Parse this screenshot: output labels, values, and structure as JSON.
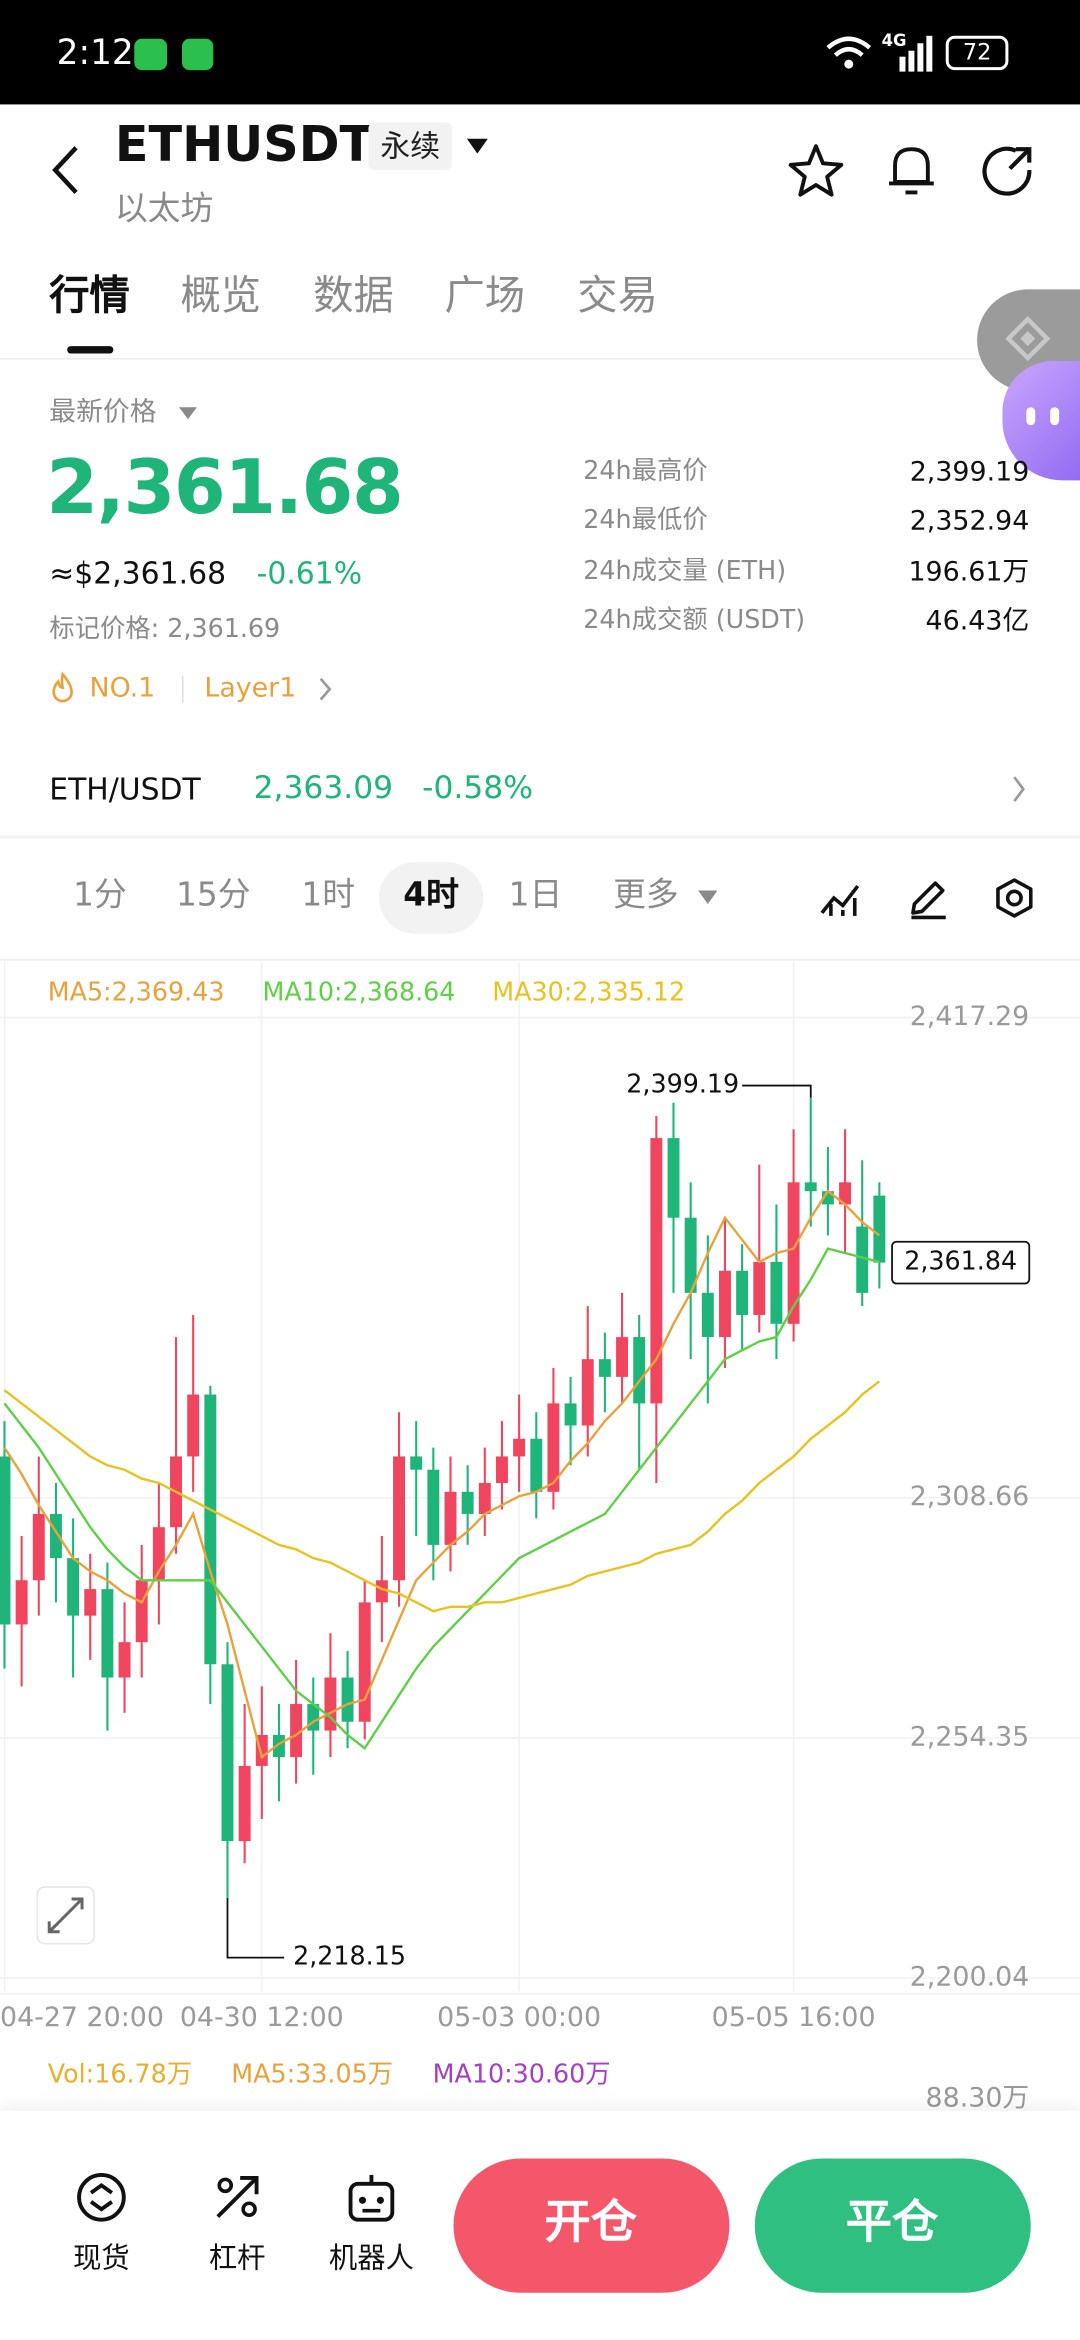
{
  "status_bar": {
    "time": "2:12",
    "network": "4G",
    "battery": "72"
  },
  "header": {
    "symbol": "ETHUSDT",
    "contract_type": "永续",
    "name": "以太坊"
  },
  "tabs": [
    "行情",
    "概览",
    "数据",
    "广场",
    "交易"
  ],
  "price_panel": {
    "label": "最新价格",
    "last_price": "2,361.68",
    "usd_price": "≈$2,361.68",
    "change": "-0.61%",
    "mark_price": "标记价格: 2,361.69",
    "rank": "NO.1",
    "sector": "Layer1"
  },
  "stats": [
    {
      "label": "24h最高价",
      "value": "2,399.19"
    },
    {
      "label": "24h最低价",
      "value": "2,352.94"
    },
    {
      "label": "24h成交量 (ETH)",
      "value": "196.61万"
    },
    {
      "label": "24h成交额 (USDT)",
      "value": "46.43亿"
    }
  ],
  "spot_pair": {
    "symbol": "ETH/USDT",
    "price": "2,363.09",
    "change": "-0.58%"
  },
  "timeframes": [
    "1分",
    "15分",
    "1时",
    "4时",
    "1日"
  ],
  "selected_timeframe": 3,
  "more_label": "更多",
  "chart_data": {
    "type": "candlestick",
    "categories": [
      "04-27 20:00",
      null,
      null,
      null,
      null,
      null,
      null,
      null,
      null,
      null,
      null,
      null,
      null,
      null,
      null,
      "04-30 12:00",
      null,
      null,
      null,
      null,
      null,
      null,
      null,
      null,
      null,
      null,
      null,
      null,
      null,
      null,
      "05-03 00:00",
      null,
      null,
      null,
      null,
      null,
      null,
      null,
      null,
      null,
      null,
      null,
      null,
      null,
      null,
      null,
      "05-05 16:00",
      null,
      null,
      null,
      null,
      null
    ],
    "open": [
      2318,
      2280,
      2290,
      2305,
      2295,
      2282,
      2288,
      2268,
      2276,
      2290,
      2302,
      2318,
      2332,
      2271,
      2231,
      2248,
      2255,
      2250,
      2262,
      2256,
      2268,
      2258,
      2285,
      2290,
      2318,
      2315,
      2298,
      2310,
      2305,
      2312,
      2318,
      2322,
      2310,
      2330,
      2325,
      2340,
      2336,
      2345,
      2330,
      2390,
      2372,
      2355,
      2345,
      2360,
      2350,
      2362,
      2348,
      2380,
      2378,
      2375,
      2370,
      2377
    ],
    "high": [
      2326,
      2300,
      2318,
      2312,
      2304,
      2296,
      2294,
      2285,
      2298,
      2312,
      2345,
      2350,
      2334,
      2276,
      2262,
      2266,
      2262,
      2272,
      2268,
      2278,
      2274,
      2290,
      2300,
      2328,
      2326,
      2320,
      2318,
      2316,
      2320,
      2326,
      2332,
      2328,
      2338,
      2336,
      2352,
      2346,
      2355,
      2350,
      2395,
      2398,
      2380,
      2368,
      2372,
      2366,
      2384,
      2375,
      2392,
      2399.19,
      2388,
      2392,
      2385,
      2380
    ],
    "low": [
      2270,
      2266,
      2282,
      2285,
      2268,
      2272,
      2256,
      2260,
      2268,
      2280,
      2296,
      2310,
      2262,
      2218.15,
      2226,
      2236,
      2240,
      2244,
      2246,
      2250,
      2252,
      2254,
      2276,
      2284,
      2300,
      2290,
      2292,
      2298,
      2300,
      2306,
      2310,
      2304,
      2306,
      2316,
      2318,
      2328,
      2330,
      2315,
      2312,
      2355,
      2340,
      2330,
      2338,
      2342,
      2346,
      2340,
      2344,
      2370,
      2368,
      2364,
      2352,
      2356
    ],
    "close": [
      2280,
      2290,
      2305,
      2295,
      2282,
      2288,
      2268,
      2276,
      2290,
      2302,
      2318,
      2332,
      2271,
      2231,
      2248,
      2255,
      2250,
      2262,
      2256,
      2268,
      2258,
      2285,
      2290,
      2318,
      2315,
      2298,
      2310,
      2305,
      2312,
      2318,
      2322,
      2310,
      2330,
      2325,
      2340,
      2336,
      2345,
      2330,
      2390,
      2372,
      2355,
      2345,
      2360,
      2350,
      2362,
      2348,
      2380,
      2378,
      2375,
      2380,
      2355,
      2361.84
    ],
    "up_color": "#f0455f",
    "down_color": "#1fb57a",
    "series": [
      {
        "name": "MA5:2,369.43",
        "color": "#e9a23b",
        "values": [
          2320,
          2314,
          2307,
          2301,
          2295,
          2292,
          2290,
          2287,
          2285,
          2292,
          2298,
          2305,
          2292,
          2280,
          2265,
          2250,
          2253,
          2255,
          2258,
          2260,
          2262,
          2263,
          2272,
          2281,
          2290,
          2294,
          2298,
          2301,
          2305,
          2307,
          2309,
          2310,
          2312,
          2317,
          2321,
          2326,
          2330,
          2335,
          2340,
          2348,
          2355,
          2364,
          2372,
          2367,
          2362,
          2364,
          2365,
          2372,
          2378,
          2375,
          2371,
          2368
        ]
      },
      {
        "name": "MA10:2,368.64",
        "color": "#5fd046",
        "values": [
          2330,
          2325,
          2320,
          2314,
          2308,
          2302,
          2297,
          2293,
          2290,
          2290,
          2290,
          2290,
          2290,
          2285,
          2280,
          2275,
          2270,
          2265,
          2262,
          2259,
          2255,
          2252,
          2258,
          2264,
          2270,
          2275,
          2279,
          2283,
          2287,
          2291,
          2295,
          2297,
          2299,
          2301,
          2303,
          2305,
          2310,
          2315,
          2320,
          2325,
          2330,
          2335,
          2340,
          2342,
          2344,
          2345,
          2352,
          2358,
          2365,
          2364,
          2363,
          2362
        ]
      },
      {
        "name": "MA30:2,335.12",
        "color": "#e8c21e",
        "values": [
          2333,
          2330,
          2327,
          2324,
          2321,
          2318,
          2316,
          2315,
          2313,
          2312,
          2310,
          2308,
          2306,
          2304,
          2302,
          2300,
          2298,
          2297,
          2295,
          2294,
          2292,
          2290,
          2288,
          2287,
          2285,
          2283,
          2284,
          2284,
          2285,
          2285,
          2286,
          2287,
          2288,
          2289,
          2291,
          2292,
          2293,
          2294,
          2296,
          2297,
          2298,
          2301,
          2305,
          2308,
          2312,
          2315,
          2318,
          2322,
          2325,
          2328,
          2332,
          2335
        ]
      }
    ],
    "ylim": [
      2197.0,
      2429.8
    ],
    "yticks": [
      {
        "value": 2417.29,
        "label": "2,417.29"
      },
      {
        "value": 2308.66,
        "label": "2,308.66"
      },
      {
        "value": 2254.35,
        "label": "2,254.35"
      },
      {
        "value": 2200.04,
        "label": "2,200.04"
      }
    ],
    "grid": true,
    "max_label": {
      "value": 2399.19,
      "label": "2,399.19"
    },
    "min_label": {
      "value": 2218.15,
      "label": "2,218.15"
    },
    "last_price": {
      "value": 2361.84,
      "label": "2,361.84"
    }
  },
  "volume_panel": {
    "volume": "Vol:16.78万",
    "ma5": "MA5:33.05万",
    "ma10": "MA10:30.60万",
    "axis_max": "88.30万"
  },
  "bottom_bar": {
    "nav": [
      "现货",
      "杠杆",
      "机器人"
    ],
    "open_button": "开仓",
    "close_button": "平仓"
  }
}
